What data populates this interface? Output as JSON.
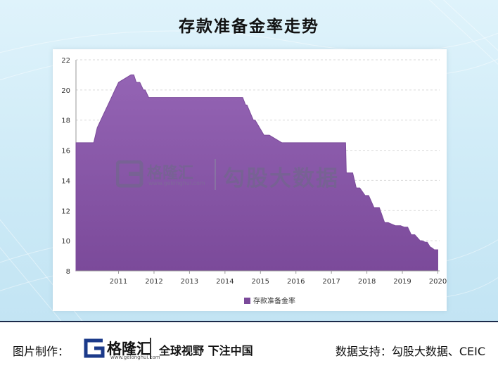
{
  "title": "存款准备金率走势",
  "watermark": {
    "brand": "格隆汇",
    "url": "www.gelonghui.com",
    "text": "勾股大数据"
  },
  "footer": {
    "label": "图片制作：",
    "brand": "格隆汇",
    "url": "www.gelonghui.com",
    "slogan": "全球视野 下注中国",
    "source": "数据支持：勾股大数据、CEIC"
  },
  "colors": {
    "area": "#7b4a9a",
    "areaLight": "#9464b4",
    "grid": "#d9d9d9",
    "text": "#333333"
  },
  "chart_data": {
    "type": "area",
    "title": "",
    "xlabel": "",
    "ylabel": "",
    "ylim": [
      8,
      22
    ],
    "yticks": [
      8,
      10,
      12,
      14,
      16,
      18,
      20,
      22
    ],
    "xlim": [
      2010.3,
      2020.55
    ],
    "xticks": [
      "2011",
      "2012",
      "2013",
      "2014",
      "2015",
      "2016",
      "2017",
      "2018",
      "2019",
      "2020"
    ],
    "grid": true,
    "legend_position": "bottom-center",
    "series": [
      {
        "name": "存款准备金率",
        "x": [
          2010.3,
          2010.7,
          2010.8,
          2010.9,
          2011.0,
          2011.1,
          2011.2,
          2011.3,
          2011.4,
          2011.5,
          2011.85,
          2011.93,
          2012.0,
          2012.1,
          2012.2,
          2012.25,
          2012.35,
          2015.0,
          2015.08,
          2015.12,
          2015.3,
          2015.35,
          2015.6,
          2015.75,
          2016.1,
          2016.15,
          2017.9,
          2017.92,
          2018.1,
          2018.2,
          2018.3,
          2018.45,
          2018.55,
          2018.7,
          2018.85,
          2019.0,
          2019.05,
          2019.1,
          2019.3,
          2019.45,
          2019.55,
          2019.65,
          2019.75,
          2019.85,
          2020.0,
          2020.05,
          2020.15,
          2020.2,
          2020.28,
          2020.35,
          2020.4,
          2020.5
        ],
        "y": [
          16.5,
          16.5,
          16.5,
          17.5,
          18.0,
          18.5,
          19.0,
          19.5,
          20.0,
          20.5,
          21.0,
          21.0,
          20.5,
          20.5,
          20.0,
          20.0,
          19.5,
          19.5,
          19.0,
          19.0,
          18.0,
          18.0,
          17.0,
          17.0,
          16.5,
          16.5,
          16.5,
          14.5,
          14.5,
          13.5,
          13.5,
          13.0,
          13.0,
          12.2,
          12.2,
          11.2,
          11.2,
          11.2,
          11.0,
          11.0,
          10.9,
          10.9,
          10.4,
          10.4,
          10.0,
          10.0,
          9.9,
          9.9,
          9.6,
          9.5,
          9.4,
          9.4
        ]
      }
    ]
  }
}
